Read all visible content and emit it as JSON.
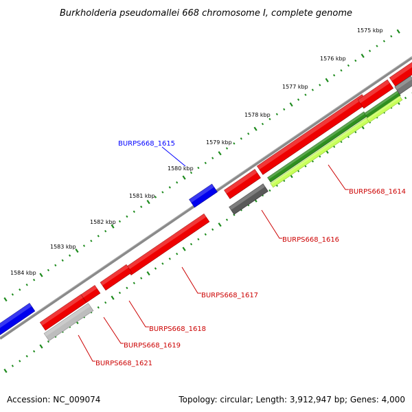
{
  "title": "Burkholderia pseudomallei 668 chromosome I, complete genome",
  "footer": {
    "accession": "Accession: NC_009074",
    "summary": "Topology: circular; Length: 3,912,947 bp; Genes: 4,000"
  },
  "colors": {
    "backbone": "#7f7f7f",
    "forward_gene": "#0000ff",
    "reverse_gene": "#ff0000",
    "green_feature": "#44aa00",
    "lime_feature": "#b8ff40",
    "dark_grey_feature": "#555555",
    "light_grey_feature": "#bbbbbb",
    "tick": "#1c8a1c"
  },
  "ticks": [
    {
      "id": "1575",
      "label": "1575 kbp"
    },
    {
      "id": "1576",
      "label": "1576 kbp"
    },
    {
      "id": "1577",
      "label": "1577 kbp"
    },
    {
      "id": "1578",
      "label": "1578 kbp"
    },
    {
      "id": "1579",
      "label": "1579 kbp"
    },
    {
      "id": "1580",
      "label": "1580 kbp"
    },
    {
      "id": "1581",
      "label": "1581 kbp"
    },
    {
      "id": "1582",
      "label": "1582 kbp"
    },
    {
      "id": "1583",
      "label": "1583 kbp"
    },
    {
      "id": "1584",
      "label": "1584 kbp"
    }
  ],
  "gene_labels": [
    {
      "id": "1615",
      "text": "BURPS668_1615",
      "color": "#0000ff"
    },
    {
      "id": "1614",
      "text": "BURPS668_1614",
      "color": "#cc0000"
    },
    {
      "id": "1616",
      "text": "BURPS668_1616",
      "color": "#cc0000"
    },
    {
      "id": "1617",
      "text": "BURPS668_1617",
      "color": "#cc0000"
    },
    {
      "id": "1618",
      "text": "BURPS668_1618",
      "color": "#cc0000"
    },
    {
      "id": "1619",
      "text": "BURPS668_1619",
      "color": "#cc0000"
    },
    {
      "id": "1621",
      "text": "BURPS668_1621",
      "color": "#cc0000"
    }
  ]
}
